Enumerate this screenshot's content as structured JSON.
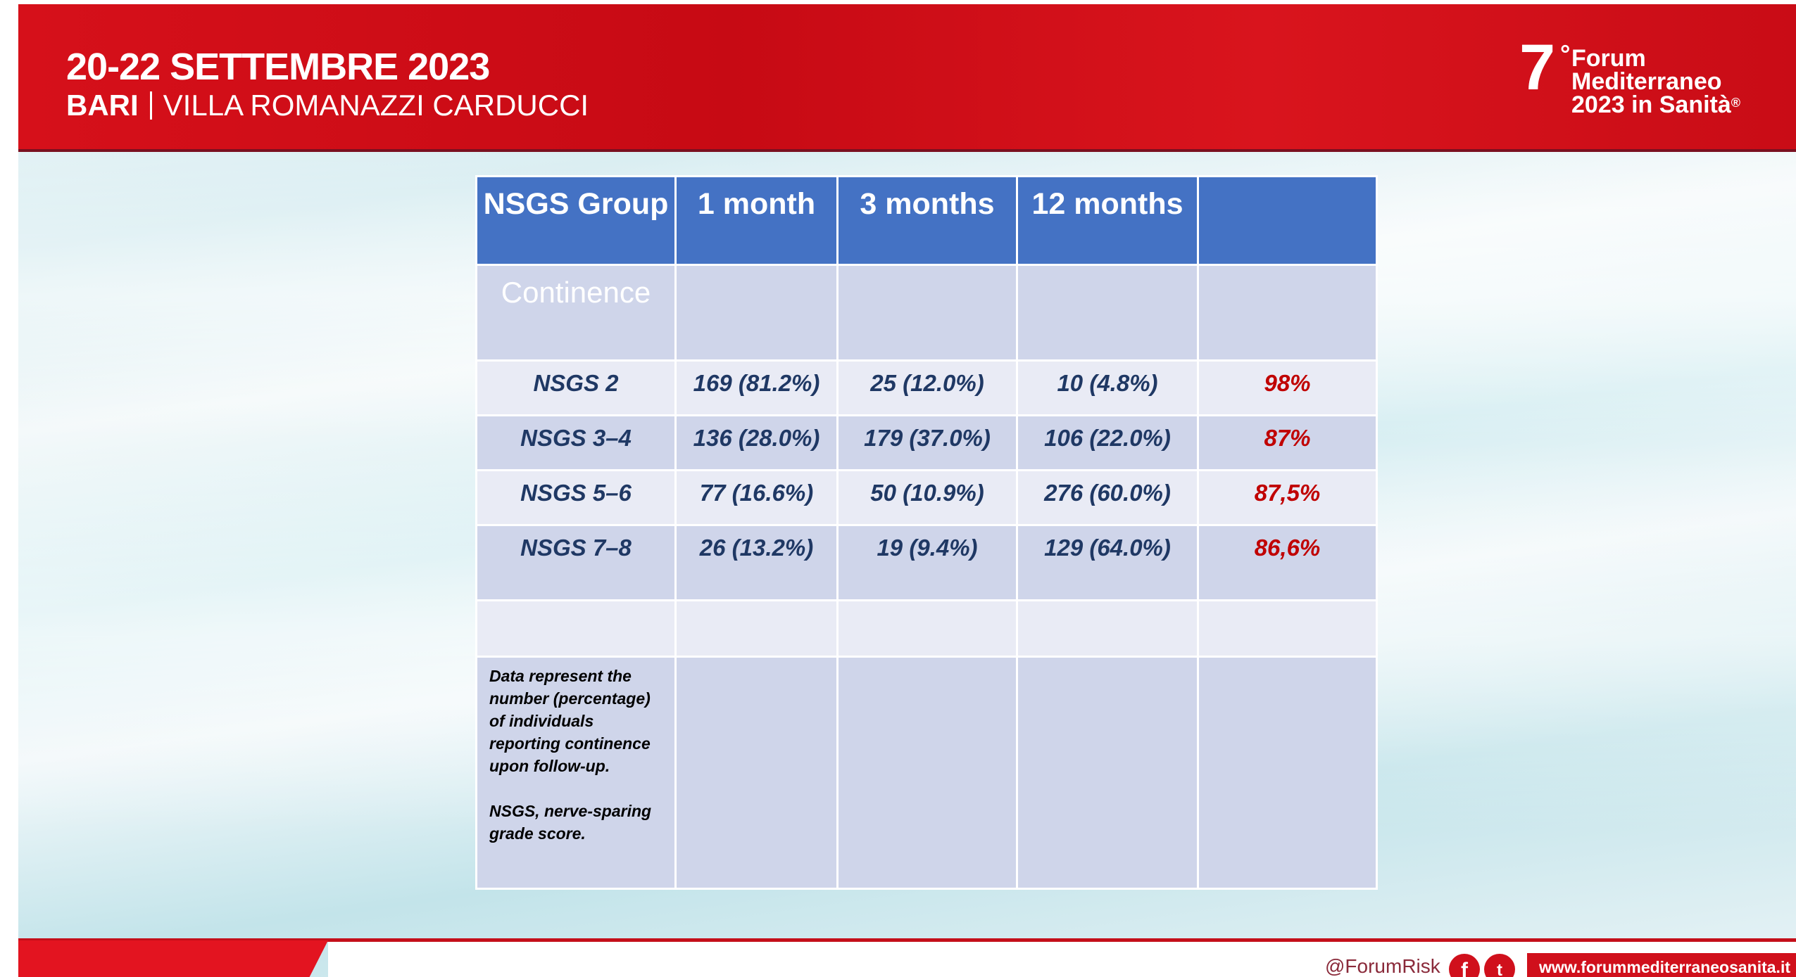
{
  "header": {
    "date": "20-22 SETTEMBRE 2023",
    "city": "BARI",
    "venue": "VILLA ROMANAZZI CARDUCCI"
  },
  "logo": {
    "number": "7",
    "degree": "°",
    "lines": [
      "Forum",
      "Mediterraneo",
      "2023 in Sanità"
    ],
    "reg": "®"
  },
  "table": {
    "columns": [
      "NSGS Group",
      "1 month",
      "3 months",
      "12 months"
    ],
    "section": "Continence",
    "rows": [
      [
        "NSGS 2",
        "169 (81.2%)",
        "25 (12.0%)",
        "10 (4.8%)",
        "98%"
      ],
      [
        "NSGS 3–4",
        "136 (28.0%)",
        "179 (37.0%)",
        "106 (22.0%)",
        "87%"
      ],
      [
        "NSGS 5–6",
        "77 (16.6%)",
        "50 (10.9%)",
        "276 (60.0%)",
        "87,5%"
      ],
      [
        "NSGS 7–8",
        "26 (13.2%)",
        "19 (9.4%)",
        "129 (64.0%)",
        "86,6%"
      ]
    ],
    "note": [
      [
        "Data represent the",
        "number (percentage)",
        "of individuals",
        "reporting continence",
        "upon follow-up."
      ],
      [
        "NSGS, nerve-sparing",
        "grade score."
      ]
    ]
  },
  "footer": {
    "handle": "@ForumRisk",
    "url": "www.forummediterraneosanita.it"
  }
}
